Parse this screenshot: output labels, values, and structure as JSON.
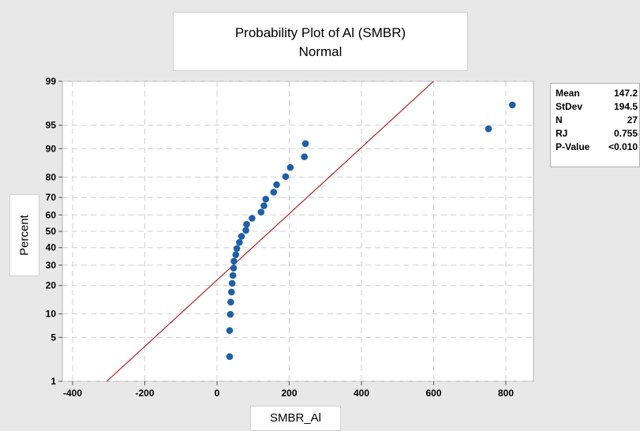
{
  "chart_data": {
    "type": "scatter",
    "title": "Probability Plot of Al (SMBR)",
    "subtitle": "Normal",
    "xlabel": "SMBR_Al",
    "ylabel": "Percent",
    "xlim": [
      -420,
      880
    ],
    "x_ticks": [
      -400,
      -200,
      0,
      200,
      400,
      600,
      800
    ],
    "y_ticks": [
      1,
      5,
      10,
      20,
      30,
      40,
      50,
      60,
      70,
      80,
      90,
      95,
      99
    ],
    "y_scale": "normal-probability",
    "grid": true,
    "fit_line": {
      "mean": 147.2,
      "stdev": 194.5,
      "color": "#b22222"
    },
    "series": [
      {
        "marker_color": "#1f5fa5",
        "points": [
          {
            "x": 35,
            "y": 2.6
          },
          {
            "x": 35,
            "y": 6.2
          },
          {
            "x": 37,
            "y": 9.9
          },
          {
            "x": 38,
            "y": 13.6
          },
          {
            "x": 40,
            "y": 17.3
          },
          {
            "x": 42,
            "y": 21.0
          },
          {
            "x": 44,
            "y": 24.7
          },
          {
            "x": 46,
            "y": 28.4
          },
          {
            "x": 47,
            "y": 32.1
          },
          {
            "x": 52,
            "y": 35.8
          },
          {
            "x": 55,
            "y": 39.5
          },
          {
            "x": 62,
            "y": 43.2
          },
          {
            "x": 68,
            "y": 46.9
          },
          {
            "x": 80,
            "y": 50.6
          },
          {
            "x": 82,
            "y": 54.3
          },
          {
            "x": 97,
            "y": 58.0
          },
          {
            "x": 122,
            "y": 61.7
          },
          {
            "x": 130,
            "y": 65.4
          },
          {
            "x": 135,
            "y": 69.1
          },
          {
            "x": 157,
            "y": 72.8
          },
          {
            "x": 165,
            "y": 76.5
          },
          {
            "x": 190,
            "y": 80.2
          },
          {
            "x": 203,
            "y": 83.9
          },
          {
            "x": 242,
            "y": 87.6
          },
          {
            "x": 245,
            "y": 91.3
          },
          {
            "x": 752,
            "y": 94.4
          },
          {
            "x": 818,
            "y": 97.5
          }
        ]
      }
    ]
  },
  "stats": [
    {
      "label": "Mean",
      "value": "147.2"
    },
    {
      "label": "StDev",
      "value": "194.5"
    },
    {
      "label": "N",
      "value": "27"
    },
    {
      "label": "RJ",
      "value": "0.755"
    },
    {
      "label": "P-Value",
      "value": "<0.010"
    }
  ]
}
